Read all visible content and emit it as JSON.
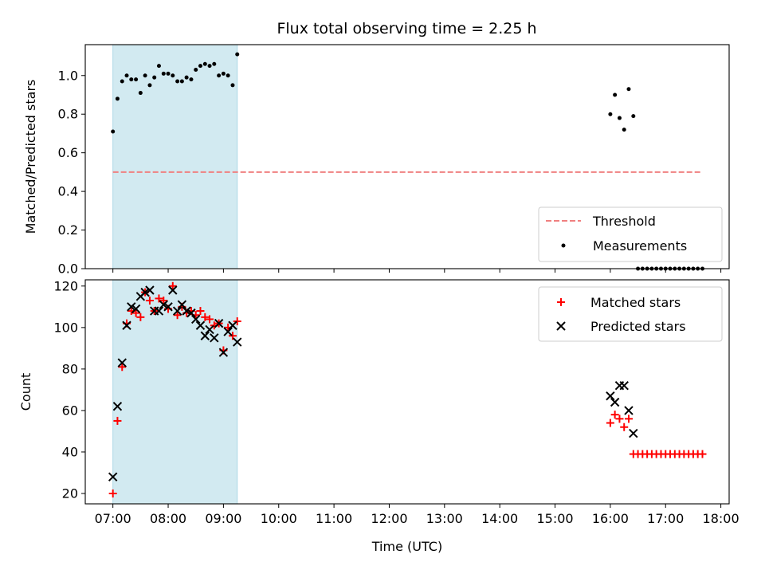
{
  "chart_data": {
    "type": "scatter",
    "title": "Flux total observing time = 2.25 h",
    "xlabel": "Time (UTC)",
    "x_ticks": [
      "07:00",
      "08:00",
      "09:00",
      "10:00",
      "11:00",
      "12:00",
      "13:00",
      "14:00",
      "15:00",
      "16:00",
      "17:00",
      "18:00"
    ],
    "xlim_hours": [
      6.5,
      18.15
    ],
    "shaded_span_hours": [
      7.0,
      9.25
    ],
    "shade_color": "#add8e6",
    "top": {
      "ylabel": "Matched/Predicted stars",
      "ylim": [
        0,
        1.16
      ],
      "yticks": [
        0.0,
        0.2,
        0.4,
        0.6,
        0.8,
        1.0
      ],
      "threshold": {
        "name": "Threshold",
        "value": 0.5,
        "x_range": [
          7.0,
          17.63
        ],
        "color": "#f08080"
      },
      "measurements_name": "Measurements",
      "measurements_color": "#000000",
      "legend_position": "lower-right",
      "measurements": [
        [
          7.0,
          0.71
        ],
        [
          7.083,
          0.88
        ],
        [
          7.167,
          0.97
        ],
        [
          7.25,
          1.0
        ],
        [
          7.333,
          0.98
        ],
        [
          7.417,
          0.98
        ],
        [
          7.5,
          0.91
        ],
        [
          7.583,
          1.0
        ],
        [
          7.667,
          0.95
        ],
        [
          7.75,
          0.99
        ],
        [
          7.833,
          1.05
        ],
        [
          7.917,
          1.01
        ],
        [
          8.0,
          1.01
        ],
        [
          8.083,
          1.0
        ],
        [
          8.167,
          0.97
        ],
        [
          8.25,
          0.97
        ],
        [
          8.333,
          0.99
        ],
        [
          8.417,
          0.98
        ],
        [
          8.5,
          1.03
        ],
        [
          8.583,
          1.05
        ],
        [
          8.667,
          1.06
        ],
        [
          8.75,
          1.05
        ],
        [
          8.833,
          1.06
        ],
        [
          8.917,
          1.0
        ],
        [
          9.0,
          1.01
        ],
        [
          9.083,
          1.0
        ],
        [
          9.167,
          0.95
        ],
        [
          9.25,
          1.11
        ],
        [
          16.0,
          0.8
        ],
        [
          16.083,
          0.9
        ],
        [
          16.167,
          0.78
        ],
        [
          16.25,
          0.72
        ],
        [
          16.333,
          0.93
        ],
        [
          16.417,
          0.79
        ],
        [
          16.5,
          0.0
        ],
        [
          16.583,
          0.0
        ],
        [
          16.667,
          0.0
        ],
        [
          16.75,
          0.0
        ],
        [
          16.833,
          0.0
        ],
        [
          16.917,
          0.0
        ],
        [
          17.0,
          0.0
        ],
        [
          17.083,
          0.0
        ],
        [
          17.167,
          0.0
        ],
        [
          17.25,
          0.0
        ],
        [
          17.333,
          0.0
        ],
        [
          17.417,
          0.0
        ],
        [
          17.5,
          0.0
        ],
        [
          17.583,
          0.0
        ],
        [
          17.667,
          0.0
        ]
      ]
    },
    "bottom": {
      "ylabel": "Count",
      "ylim": [
        15,
        123
      ],
      "yticks": [
        20,
        40,
        60,
        80,
        100,
        120
      ],
      "legend_position": "upper-right",
      "series": [
        {
          "name": "Matched stars",
          "marker": "plus",
          "color": "#ff0000",
          "points": [
            [
              7.0,
              20
            ],
            [
              7.083,
              55
            ],
            [
              7.167,
              81
            ],
            [
              7.25,
              102
            ],
            [
              7.333,
              108
            ],
            [
              7.417,
              107
            ],
            [
              7.5,
              105
            ],
            [
              7.583,
              117
            ],
            [
              7.667,
              113
            ],
            [
              7.75,
              108
            ],
            [
              7.833,
              114
            ],
            [
              7.917,
              113
            ],
            [
              8.0,
              109
            ],
            [
              8.083,
              120
            ],
            [
              8.167,
              106
            ],
            [
              8.25,
              110
            ],
            [
              8.333,
              107
            ],
            [
              8.417,
              108
            ],
            [
              8.5,
              106
            ],
            [
              8.583,
              108
            ],
            [
              8.667,
              105
            ],
            [
              8.75,
              104
            ],
            [
              8.833,
              101
            ],
            [
              8.917,
              102
            ],
            [
              9.0,
              89
            ],
            [
              9.083,
              100
            ],
            [
              9.167,
              96
            ],
            [
              9.25,
              103
            ],
            [
              16.0,
              54
            ],
            [
              16.083,
              58
            ],
            [
              16.167,
              56
            ],
            [
              16.25,
              52
            ],
            [
              16.333,
              56
            ],
            [
              16.417,
              39
            ],
            [
              16.5,
              39
            ],
            [
              16.583,
              39
            ],
            [
              16.667,
              39
            ],
            [
              16.75,
              39
            ],
            [
              16.833,
              39
            ],
            [
              16.917,
              39
            ],
            [
              17.0,
              39
            ],
            [
              17.083,
              39
            ],
            [
              17.167,
              39
            ],
            [
              17.25,
              39
            ],
            [
              17.333,
              39
            ],
            [
              17.417,
              39
            ],
            [
              17.5,
              39
            ],
            [
              17.583,
              39
            ],
            [
              17.667,
              39
            ]
          ]
        },
        {
          "name": "Predicted stars",
          "marker": "x",
          "color": "#000000",
          "points": [
            [
              7.0,
              28
            ],
            [
              7.083,
              62
            ],
            [
              7.167,
              83
            ],
            [
              7.25,
              101
            ],
            [
              7.333,
              110
            ],
            [
              7.417,
              109
            ],
            [
              7.5,
              115
            ],
            [
              7.583,
              117
            ],
            [
              7.667,
              118
            ],
            [
              7.75,
              108
            ],
            [
              7.833,
              108
            ],
            [
              7.917,
              111
            ],
            [
              8.0,
              110
            ],
            [
              8.083,
              118
            ],
            [
              8.167,
              108
            ],
            [
              8.25,
              111
            ],
            [
              8.333,
              108
            ],
            [
              8.417,
              107
            ],
            [
              8.5,
              104
            ],
            [
              8.583,
              101
            ],
            [
              8.667,
              96
            ],
            [
              8.75,
              99
            ],
            [
              8.833,
              95
            ],
            [
              8.917,
              102
            ],
            [
              9.0,
              88
            ],
            [
              9.083,
              98
            ],
            [
              9.167,
              101
            ],
            [
              9.25,
              93
            ],
            [
              16.0,
              67
            ],
            [
              16.083,
              64
            ],
            [
              16.167,
              72
            ],
            [
              16.25,
              72
            ],
            [
              16.333,
              60
            ],
            [
              16.417,
              49
            ]
          ]
        }
      ]
    }
  }
}
